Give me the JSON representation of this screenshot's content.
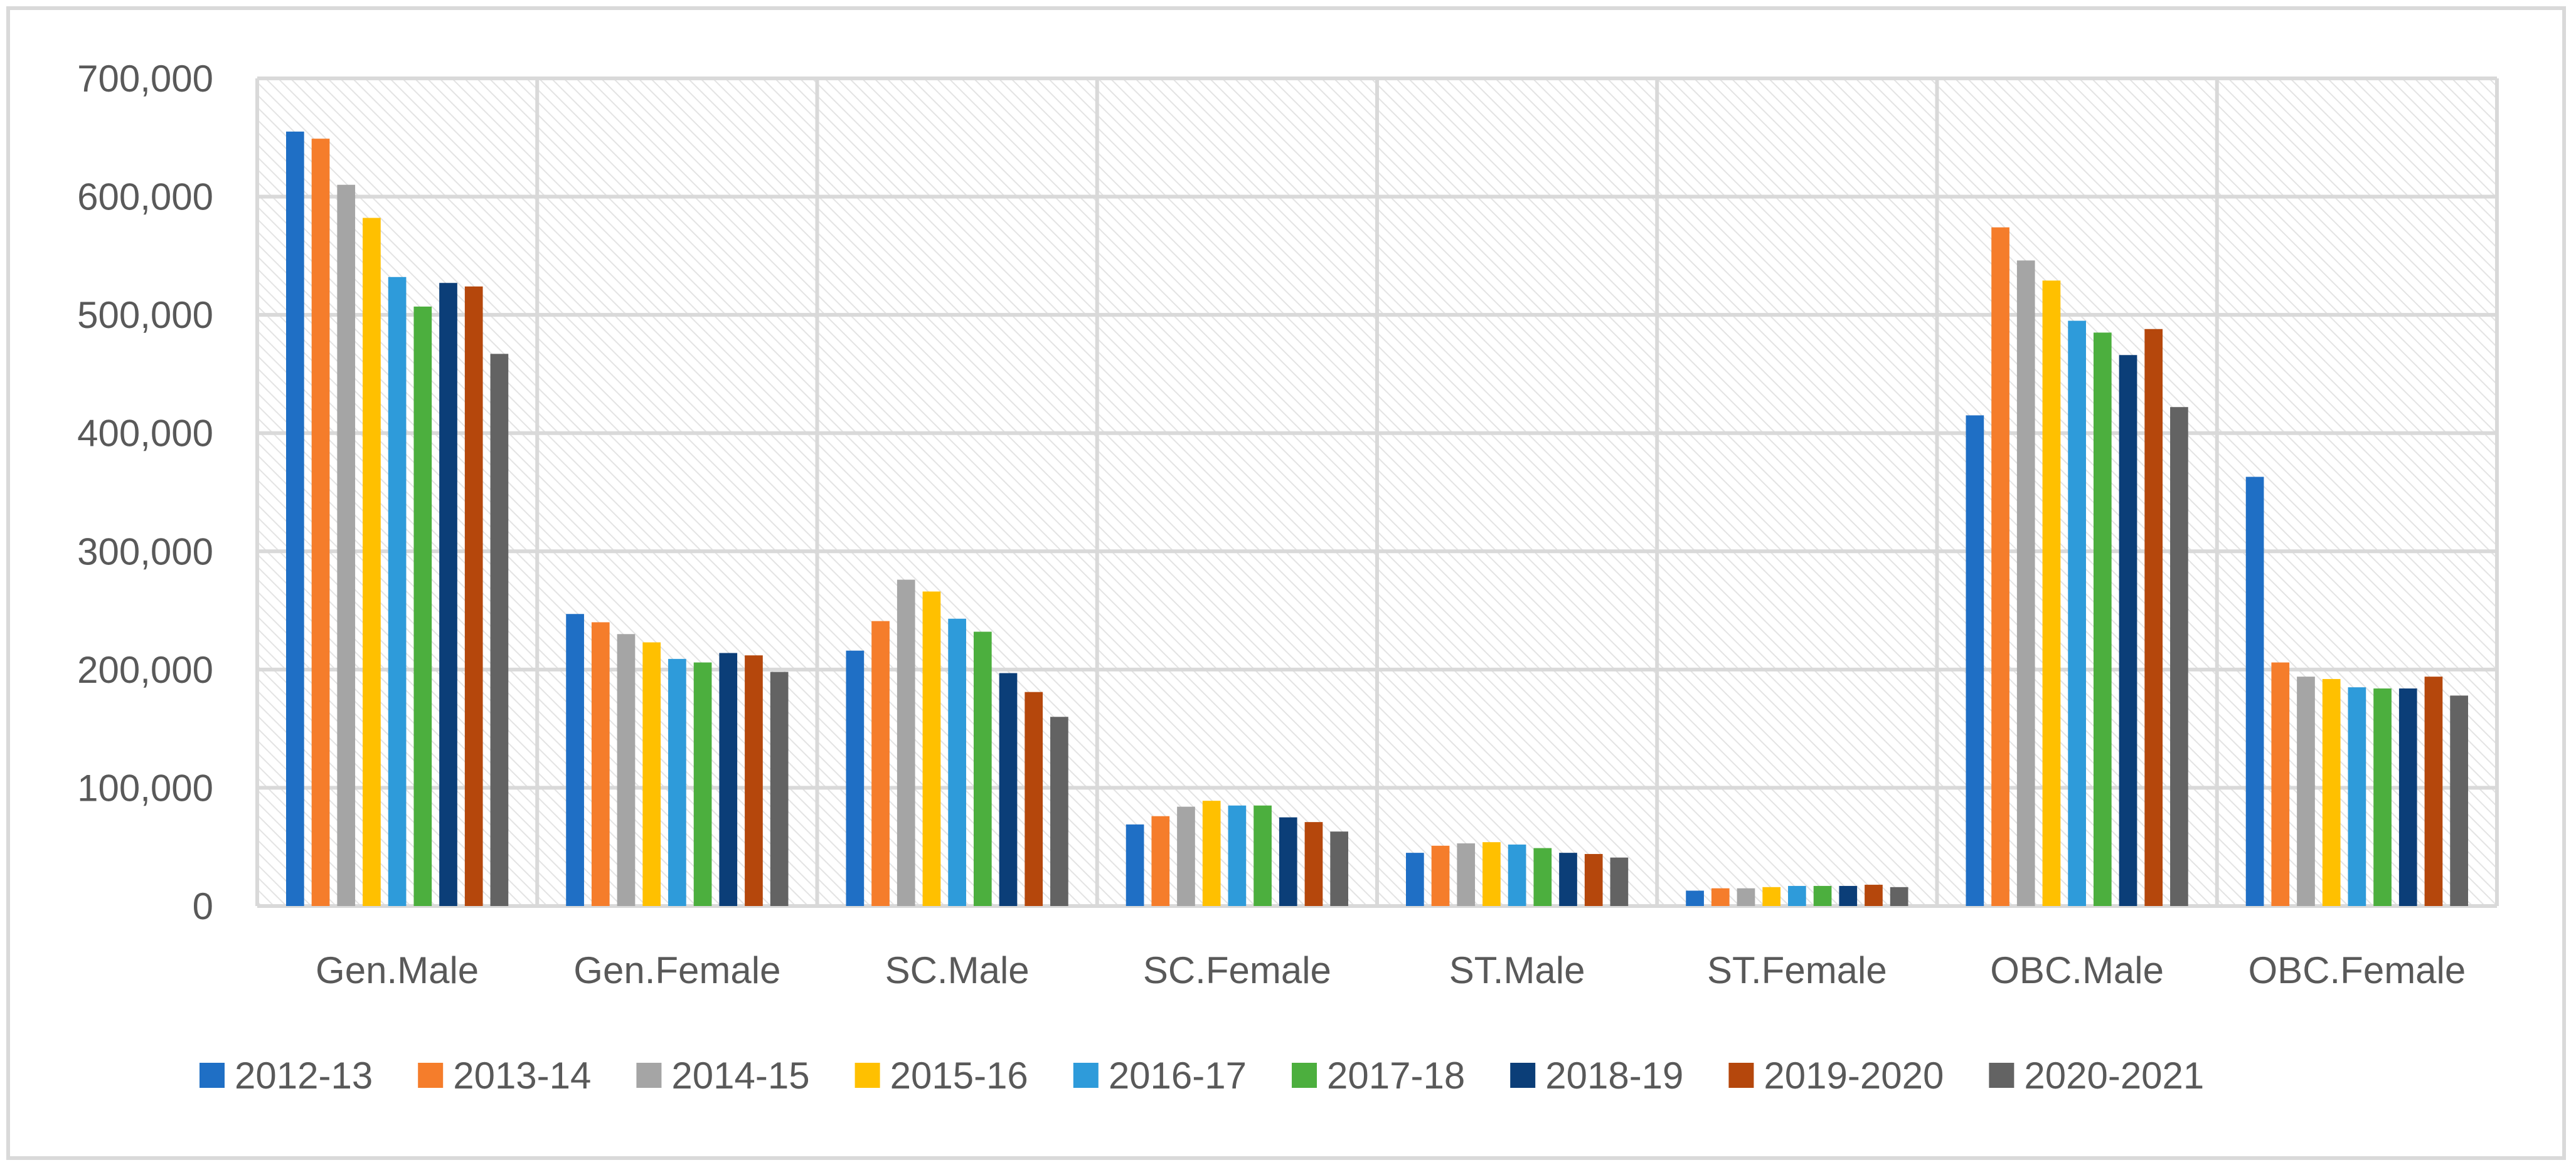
{
  "chart_data": {
    "type": "bar",
    "title": "",
    "xlabel": "",
    "ylabel": "",
    "ylim": [
      0,
      700000
    ],
    "y_ticks": [
      0,
      100000,
      200000,
      300000,
      400000,
      500000,
      600000,
      700000
    ],
    "y_tick_labels": [
      "0",
      "100,000",
      "200,000",
      "300,000",
      "400,000",
      "500,000",
      "600,000",
      "700,000"
    ],
    "grid": true,
    "legend_position": "bottom",
    "categories": [
      "Gen.Male",
      "Gen.Female",
      "SC.Male",
      "SC.Female",
      "ST.Male",
      "ST.Female",
      "OBC.Male",
      "OBC.Female"
    ],
    "series": [
      {
        "name": "2012-13",
        "color": "#1F6FC5",
        "values": [
          655000,
          247000,
          216000,
          69000,
          45000,
          13000,
          415000,
          363000
        ]
      },
      {
        "name": "2013-14",
        "color": "#F57D2B",
        "values": [
          649000,
          240000,
          241000,
          76000,
          51000,
          15000,
          574000,
          206000
        ]
      },
      {
        "name": "2014-15",
        "color": "#A5A5A5",
        "values": [
          610000,
          230000,
          276000,
          84000,
          53000,
          15000,
          546000,
          194000
        ]
      },
      {
        "name": "2015-16",
        "color": "#FFC000",
        "values": [
          582000,
          223000,
          266000,
          89000,
          54000,
          16000,
          529000,
          192000
        ]
      },
      {
        "name": "2016-17",
        "color": "#2E9BDA",
        "values": [
          532000,
          209000,
          243000,
          85000,
          52000,
          17000,
          495000,
          185000
        ]
      },
      {
        "name": "2017-18",
        "color": "#4CAF3E",
        "values": [
          507000,
          206000,
          232000,
          85000,
          49000,
          17000,
          485000,
          184000
        ]
      },
      {
        "name": "2018-19",
        "color": "#0B3E78",
        "values": [
          527000,
          214000,
          197000,
          75000,
          45000,
          17000,
          466000,
          184000
        ]
      },
      {
        "name": "2019-2020",
        "color": "#B5470C",
        "values": [
          524000,
          212000,
          181000,
          71000,
          44000,
          18000,
          488000,
          194000
        ]
      },
      {
        "name": "2020-2021",
        "color": "#636363",
        "values": [
          467000,
          198000,
          160000,
          63000,
          41000,
          16000,
          422000,
          178000
        ]
      }
    ]
  }
}
